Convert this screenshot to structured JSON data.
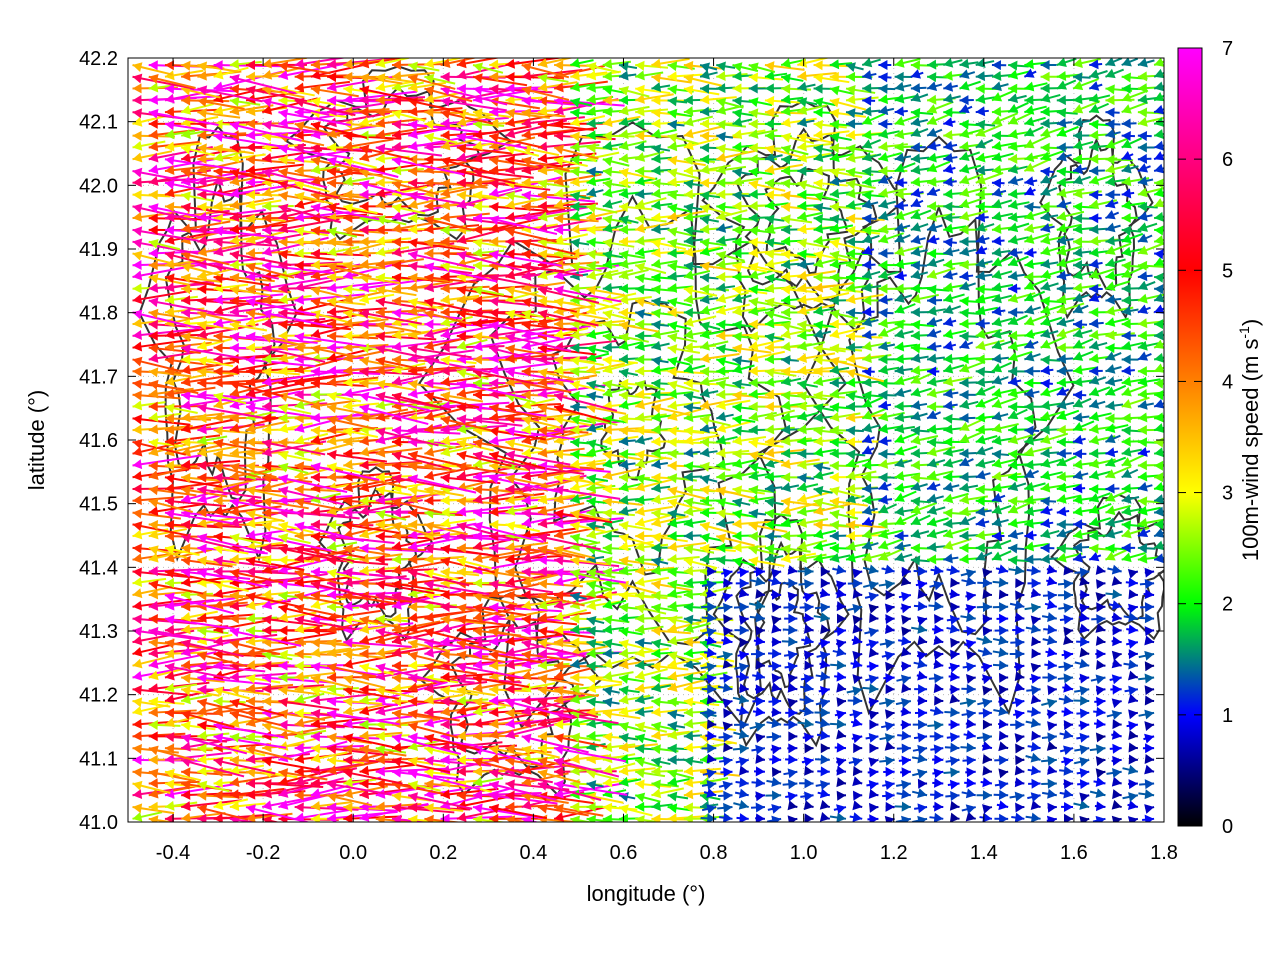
{
  "chart_data": {
    "type": "vector-field",
    "xlabel": "longitude (°)",
    "ylabel": "latitude (°)",
    "xlim": [
      -0.5,
      1.8
    ],
    "ylim": [
      41.0,
      42.2
    ],
    "x_ticks": [
      "-0.4",
      "-0.2",
      "0.0",
      "0.2",
      "0.4",
      "0.6",
      "0.8",
      "1.0",
      "1.2",
      "1.4",
      "1.6",
      "1.8"
    ],
    "y_ticks": [
      "41.0",
      "41.1",
      "41.2",
      "41.3",
      "41.4",
      "41.5",
      "41.6",
      "41.7",
      "41.8",
      "41.9",
      "42.0",
      "42.1",
      "42.2"
    ],
    "grid": true,
    "colorbar": {
      "label_prefix": "100m-wind speed (m s",
      "label_exp": "-1",
      "label_suffix": ")",
      "range": [
        0,
        7
      ],
      "ticks": [
        "0",
        "1",
        "2",
        "3",
        "4",
        "5",
        "6",
        "7"
      ],
      "colors": [
        "#000000",
        "#0000ff",
        "#00ff00",
        "#ffff00",
        "#ff8000",
        "#ff0000",
        "#ff00ff"
      ]
    },
    "vector_field": {
      "description_regions": [
        {
          "lon": [
            -0.5,
            0.45
          ],
          "lat": [
            41.0,
            42.2
          ],
          "typical_speed": 5.5,
          "direction_deg": 180
        },
        {
          "lon": [
            0.45,
            1.1
          ],
          "lat": [
            41.4,
            42.2
          ],
          "typical_speed": 3.0,
          "direction_deg": 180
        },
        {
          "lon": [
            0.8,
            1.8
          ],
          "lat": [
            41.0,
            41.4
          ],
          "typical_speed": 1.2,
          "direction_deg": 0
        },
        {
          "lon": [
            1.1,
            1.8
          ],
          "lat": [
            41.4,
            42.2
          ],
          "typical_speed": 2.2,
          "direction_deg": 190
        }
      ],
      "samples": [
        {
          "lon": -0.45,
          "lat": 42.15,
          "u": -4.0,
          "v": 0.0,
          "speed": 4.2
        },
        {
          "lon": -0.45,
          "lat": 41.65,
          "u": -6.5,
          "v": 0.0,
          "speed": 6.8
        },
        {
          "lon": -0.45,
          "lat": 41.45,
          "u": -6.0,
          "v": 0.2,
          "speed": 6.2
        },
        {
          "lon": -0.25,
          "lat": 41.6,
          "u": -6.8,
          "v": 0.0,
          "speed": 6.9
        },
        {
          "lon": 0.2,
          "lat": 41.3,
          "u": -6.0,
          "v": 0.5,
          "speed": 6.5
        },
        {
          "lon": 0.45,
          "lat": 41.75,
          "u": -5.5,
          "v": -0.2,
          "speed": 5.8
        },
        {
          "lon": 0.7,
          "lat": 41.6,
          "u": -3.0,
          "v": 0.0,
          "speed": 3.2
        },
        {
          "lon": 1.0,
          "lat": 41.9,
          "u": -2.5,
          "v": 0.0,
          "speed": 2.4
        },
        {
          "lon": 1.3,
          "lat": 41.2,
          "u": 0.8,
          "v": 0.0,
          "speed": 1.0
        },
        {
          "lon": 1.6,
          "lat": 41.1,
          "u": 1.0,
          "v": 0.0,
          "speed": 1.2
        },
        {
          "lon": 1.5,
          "lat": 41.7,
          "u": -2.0,
          "v": 0.3,
          "speed": 2.2
        },
        {
          "lon": 1.7,
          "lat": 42.0,
          "u": -1.5,
          "v": 0.0,
          "speed": 1.5
        }
      ]
    },
    "contours": "terrain elevation isolines (dark grey)"
  }
}
